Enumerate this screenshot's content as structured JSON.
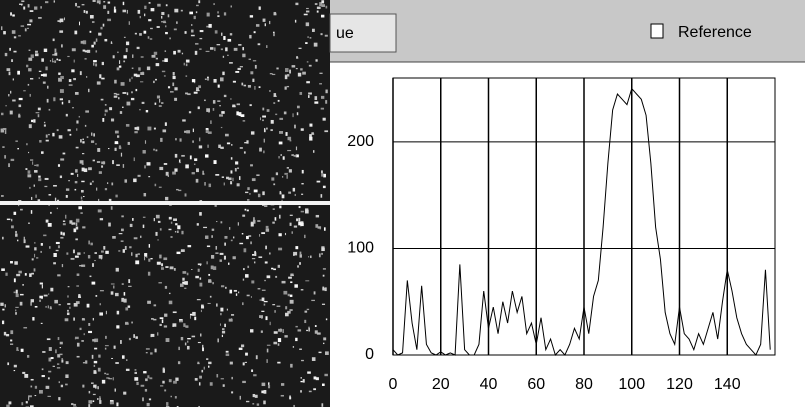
{
  "ui": {
    "button_label": "ue",
    "checkbox_label": "Reference"
  },
  "chart_data": {
    "type": "line",
    "x": [
      0,
      2,
      4,
      6,
      8,
      10,
      12,
      14,
      16,
      18,
      20,
      22,
      24,
      26,
      28,
      30,
      32,
      34,
      36,
      38,
      40,
      42,
      44,
      46,
      48,
      50,
      52,
      54,
      56,
      58,
      60,
      62,
      64,
      66,
      68,
      70,
      72,
      74,
      76,
      78,
      80,
      82,
      84,
      86,
      88,
      90,
      92,
      94,
      96,
      98,
      100,
      102,
      104,
      106,
      108,
      110,
      112,
      114,
      116,
      118,
      120,
      122,
      124,
      126,
      128,
      130,
      132,
      134,
      136,
      138,
      140,
      142,
      144,
      146,
      148,
      150,
      152,
      154,
      156,
      158
    ],
    "values": [
      5,
      0,
      2,
      70,
      30,
      5,
      65,
      10,
      2,
      0,
      3,
      0,
      2,
      0,
      85,
      5,
      0,
      0,
      10,
      60,
      25,
      45,
      20,
      50,
      30,
      60,
      40,
      55,
      20,
      30,
      10,
      35,
      5,
      15,
      0,
      5,
      0,
      10,
      25,
      15,
      45,
      20,
      55,
      70,
      120,
      180,
      230,
      245,
      240,
      235,
      250,
      245,
      240,
      225,
      180,
      120,
      90,
      40,
      20,
      10,
      45,
      20,
      15,
      5,
      20,
      10,
      25,
      40,
      15,
      50,
      80,
      60,
      35,
      20,
      10,
      5,
      0,
      10,
      80,
      5
    ],
    "color": "#000000",
    "xlim": [
      0,
      160
    ],
    "ylim": [
      0,
      260
    ],
    "xticks": [
      0,
      20,
      40,
      60,
      80,
      100,
      120,
      140
    ],
    "yticks": [
      0,
      100,
      200
    ],
    "grid": true
  }
}
